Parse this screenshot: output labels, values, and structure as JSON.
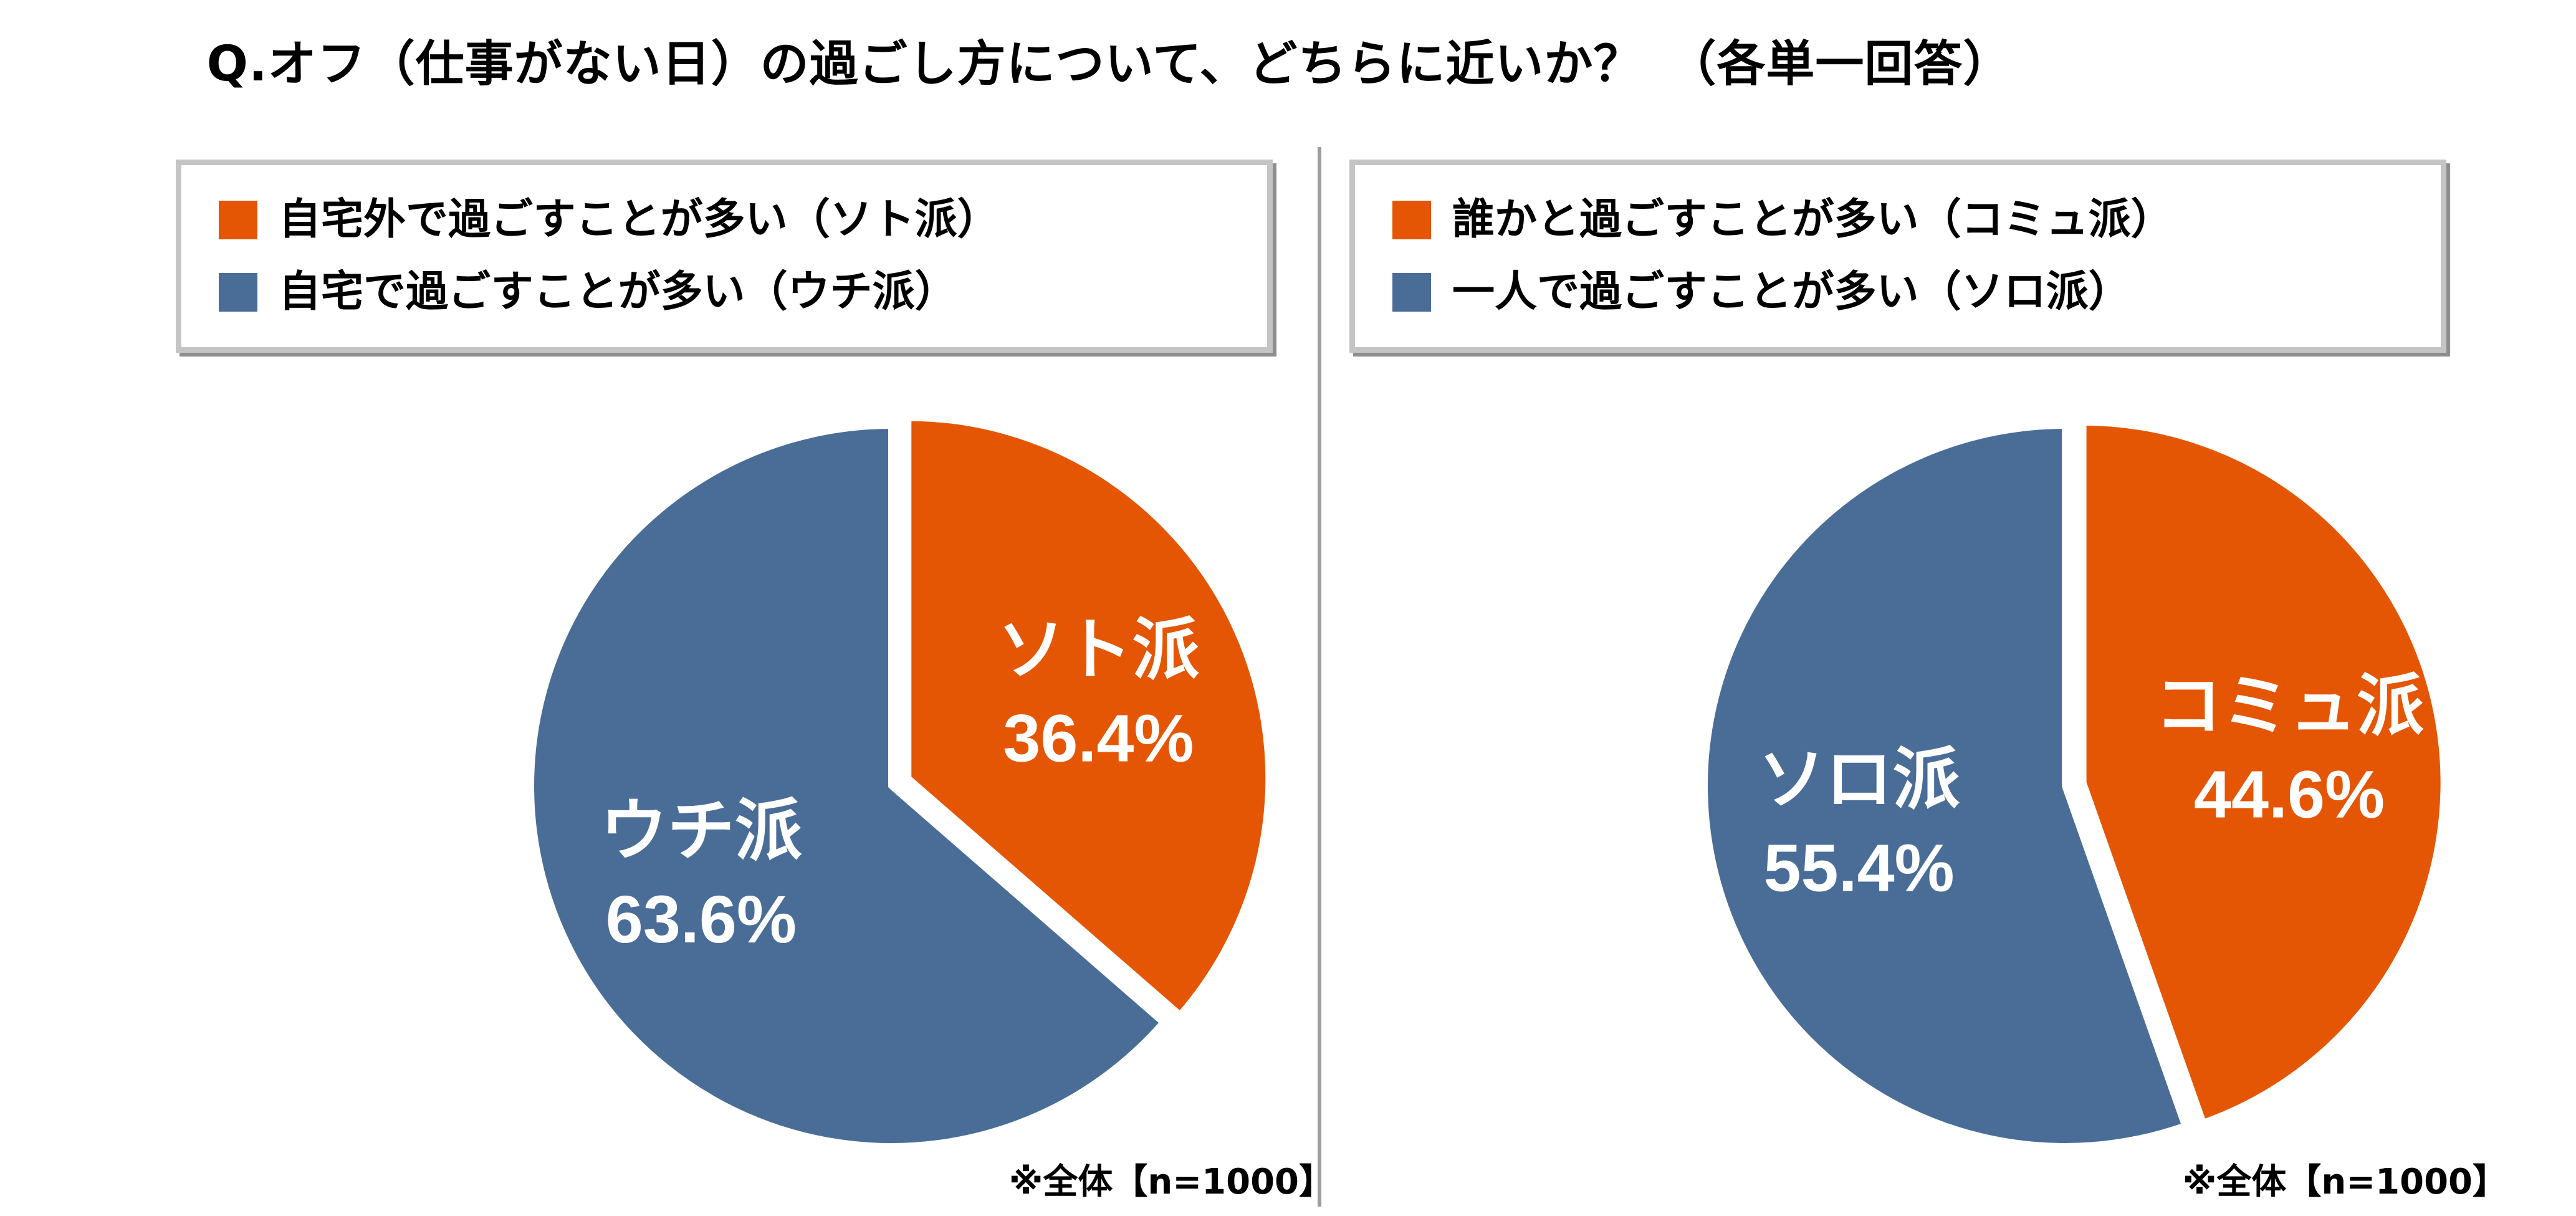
{
  "title": "Q.オフ（仕事がない日）の過ごし方について、どちらに近いか？　（各単一回答）",
  "chart_data": [
    {
      "type": "pie",
      "categories": [
        "自宅外で過ごすことが多い（ソト派）",
        "自宅で過ごすことが多い（ウチ派）"
      ],
      "slice_names": [
        "ソト派",
        "ウチ派"
      ],
      "values": [
        36.4,
        63.6
      ],
      "value_labels": [
        "36.4%",
        "63.6%"
      ],
      "colors": [
        "#e55604",
        "#4a6d98"
      ],
      "note": "※全体【n=1000】",
      "legend_position": "top"
    },
    {
      "type": "pie",
      "categories": [
        "誰かと過ごすことが多い（コミュ派）",
        "一人で過ごすことが多い（ソロ派）"
      ],
      "slice_names": [
        "コミュ派",
        "ソロ派"
      ],
      "values": [
        44.6,
        55.4
      ],
      "value_labels": [
        "44.6%",
        "55.4%"
      ],
      "colors": [
        "#e55604",
        "#4a6d98"
      ],
      "note": "※全体【n=1000】",
      "legend_position": "top"
    }
  ]
}
